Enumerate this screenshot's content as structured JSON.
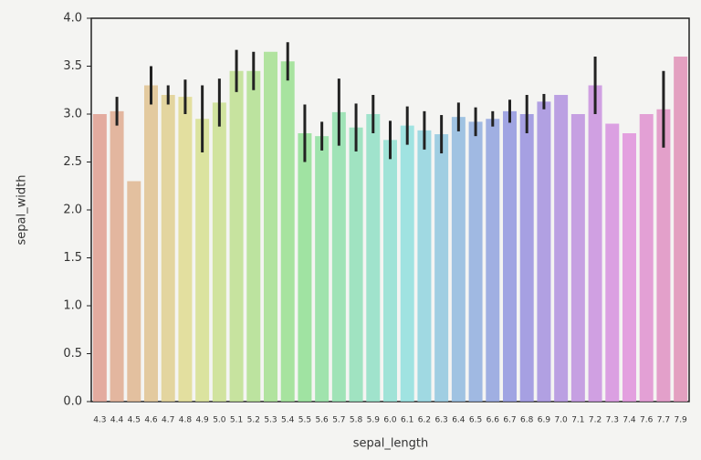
{
  "chart_data": {
    "type": "bar",
    "xlabel": "sepal_length",
    "ylabel": "sepal_width",
    "categories": [
      "4.3",
      "4.4",
      "4.5",
      "4.6",
      "4.7",
      "4.8",
      "4.9",
      "5.0",
      "5.1",
      "5.2",
      "5.3",
      "5.4",
      "5.5",
      "5.6",
      "5.7",
      "5.8",
      "5.9",
      "6.0",
      "6.1",
      "6.2",
      "6.3",
      "6.4",
      "6.5",
      "6.6",
      "6.7",
      "6.8",
      "6.9",
      "7.0",
      "7.1",
      "7.2",
      "7.3",
      "7.4",
      "7.6",
      "7.7",
      "7.9"
    ],
    "values": [
      3.0,
      3.03,
      2.3,
      3.3,
      3.2,
      3.18,
      2.95,
      3.12,
      3.45,
      3.45,
      3.65,
      3.55,
      2.8,
      2.77,
      3.02,
      2.86,
      3.0,
      2.73,
      2.88,
      2.83,
      2.79,
      2.97,
      2.92,
      2.95,
      3.03,
      3.0,
      3.13,
      3.2,
      3.0,
      3.3,
      2.9,
      2.8,
      3.0,
      3.05,
      3.6
    ],
    "errors": [
      null,
      0.15,
      null,
      0.2,
      0.1,
      0.18,
      0.35,
      0.25,
      0.22,
      0.2,
      null,
      0.2,
      0.3,
      0.15,
      0.35,
      0.25,
      0.2,
      0.2,
      0.2,
      0.2,
      0.2,
      0.15,
      0.15,
      0.08,
      0.12,
      0.2,
      0.08,
      null,
      null,
      0.3,
      null,
      null,
      null,
      0.4,
      null
    ],
    "palette": "husl",
    "ylim": [
      0,
      4
    ],
    "yticks": [
      {
        "value": 0,
        "label": "0.0"
      },
      0.5,
      {
        "value": 1,
        "label": "1.0"
      },
      1.5,
      {
        "value": 2,
        "label": "2.0"
      },
      2.5,
      {
        "value": 3,
        "label": "3.0"
      },
      3.5,
      {
        "value": 4,
        "label": "4.0"
      }
    ]
  }
}
